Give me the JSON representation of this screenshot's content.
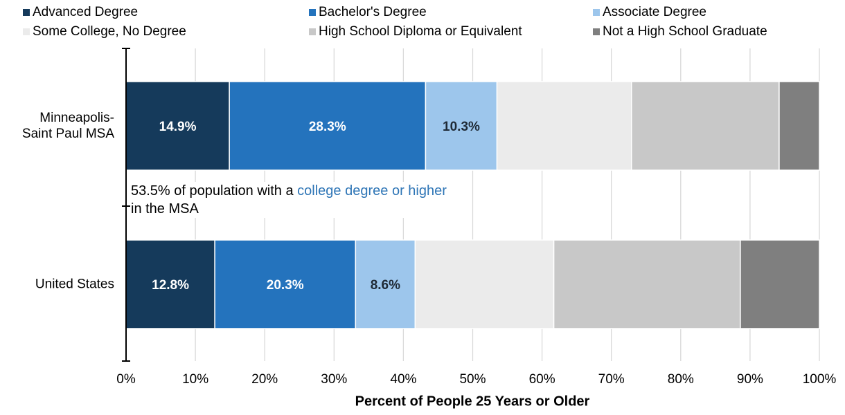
{
  "chart_data": {
    "type": "stacked_barh",
    "categories": [
      "Minneapolis-\nSaint Paul MSA",
      "United States"
    ],
    "series": [
      {
        "name": "Advanced Degree",
        "color": "#153a5b",
        "label_color": "#ffffff",
        "values": [
          14.9,
          12.8
        ],
        "value_labels": [
          "14.9%",
          "12.8%"
        ]
      },
      {
        "name": "Bachelor's Degree",
        "color": "#2473bd",
        "label_color": "#ffffff",
        "values": [
          28.3,
          20.3
        ],
        "value_labels": [
          "28.3%",
          "20.3%"
        ]
      },
      {
        "name": "Associate Degree",
        "color": "#9dc6ec",
        "label_color": "#1f2a36",
        "values": [
          10.3,
          8.6
        ],
        "value_labels": [
          "10.3%",
          "8.6%"
        ]
      },
      {
        "name": "Some College, No Degree",
        "color": "#ebebeb",
        "values": [
          19.4,
          20.0
        ]
      },
      {
        "name": "High School Diploma or Equivalent",
        "color": "#c8c8c8",
        "values": [
          21.3,
          26.9
        ]
      },
      {
        "name": "Not a High School Graduate",
        "color": "#7f7f7f",
        "values": [
          5.8,
          11.4
        ]
      }
    ],
    "xlabel": "Percent of People 25 Years or Older",
    "xlim": [
      0,
      100
    ],
    "xticks": [
      {
        "value": 0,
        "label": "0%"
      },
      {
        "value": 10,
        "label": "10%"
      },
      {
        "value": 20,
        "label": "20%"
      },
      {
        "value": 30,
        "label": "30%"
      },
      {
        "value": 40,
        "label": "40%"
      },
      {
        "value": 50,
        "label": "50%"
      },
      {
        "value": 60,
        "label": "60%"
      },
      {
        "value": 70,
        "label": "70%"
      },
      {
        "value": 80,
        "label": "80%"
      },
      {
        "value": 90,
        "label": "90%"
      },
      {
        "value": 100,
        "label": "100%"
      }
    ],
    "grid": true,
    "legend": "top",
    "annotation": [
      "53.5% of population with a",
      "college degree or higher",
      "in the MSA"
    ],
    "annotation_highlight_color": "#2e75b6"
  }
}
